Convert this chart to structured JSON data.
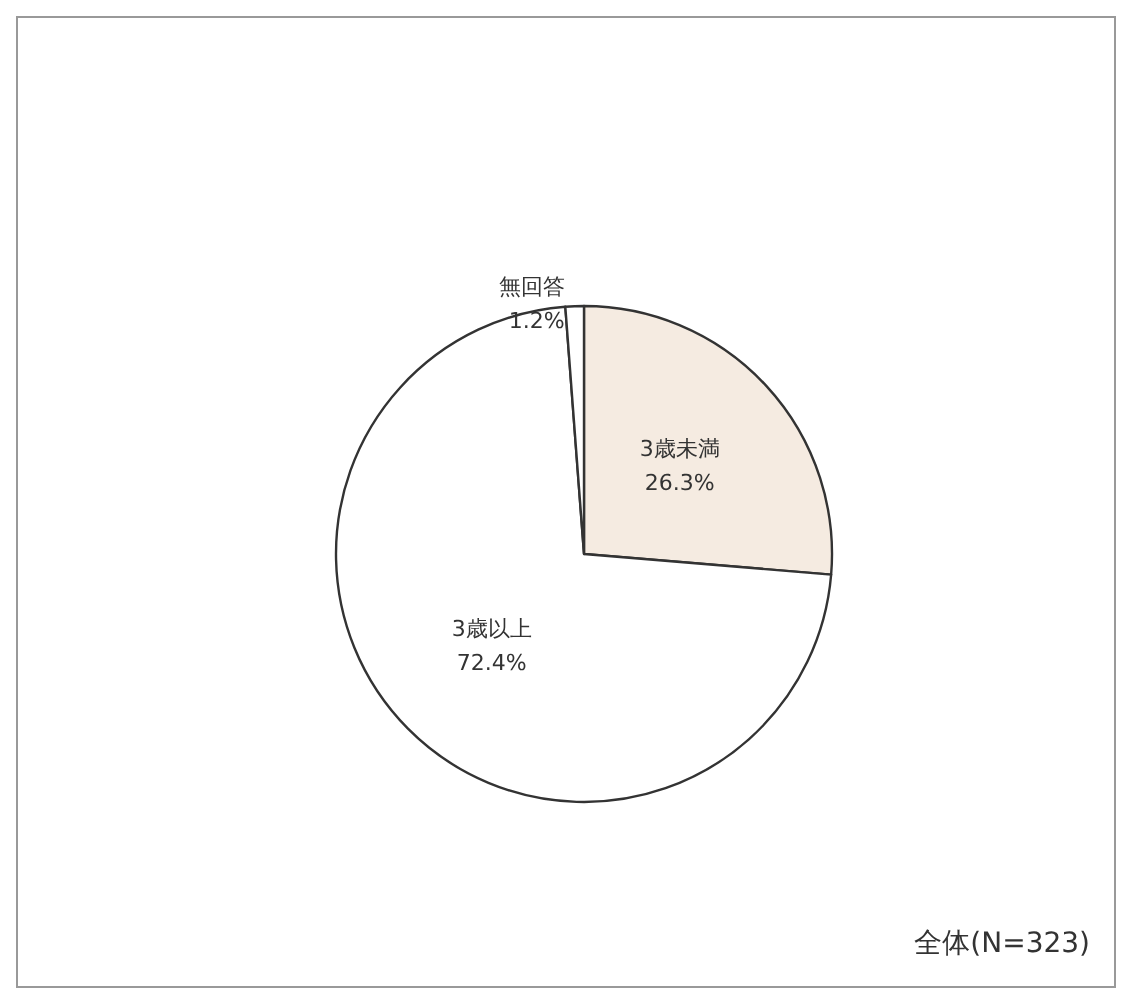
{
  "chart_data": {
    "type": "pie",
    "categories": [
      "3歳未満",
      "3歳以上",
      "無回答"
    ],
    "values": [
      26.3,
      72.4,
      1.2
    ],
    "value_labels": [
      "26.3%",
      "72.4%",
      "1.2%"
    ],
    "colors": [
      "#f5ebe1",
      "#ffffff",
      "#ffffff"
    ],
    "annotations": [
      "全体(N=323)"
    ],
    "legend": false
  }
}
